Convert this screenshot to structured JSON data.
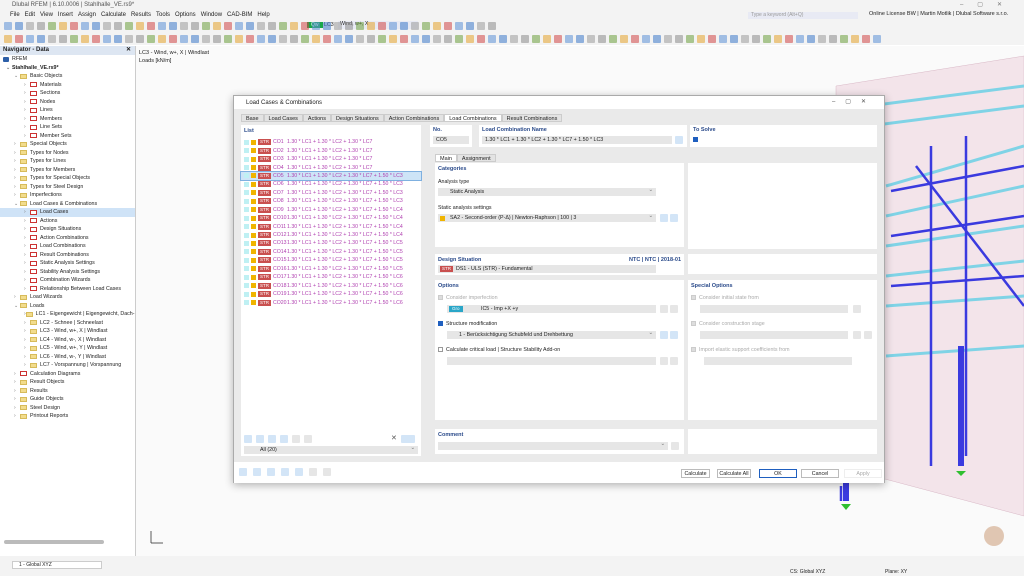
{
  "app": {
    "title": "Dlubal RFEM | 6.10.0006 | Stahlhalle_VE.rs9*",
    "menu": [
      "File",
      "Edit",
      "View",
      "Insert",
      "Assign",
      "Calculate",
      "Results",
      "Tools",
      "Options",
      "Window",
      "CAD-BIM",
      "Help"
    ],
    "search_placeholder": "Type a keyword (Alt+Q)",
    "license": "Online License BW | Martin Motlik | Dlubal Software s.r.o.",
    "load_case_badge": "Qw",
    "load_case_id": "LC3",
    "load_case_name": "Wind, w+, X"
  },
  "navigator": {
    "title": "Navigator - Data",
    "root": "RFEM",
    "file": "Stahlhalle_VE.rs9*",
    "items": [
      {
        "label": "Basic Objects",
        "level": 1,
        "folder": true,
        "open": true
      },
      {
        "label": "Materials",
        "level": 2
      },
      {
        "label": "Sections",
        "level": 2
      },
      {
        "label": "Nodes",
        "level": 2
      },
      {
        "label": "Lines",
        "level": 2
      },
      {
        "label": "Members",
        "level": 2
      },
      {
        "label": "Line Sets",
        "level": 2
      },
      {
        "label": "Member Sets",
        "level": 2
      },
      {
        "label": "Special Objects",
        "level": 1,
        "folder": true
      },
      {
        "label": "Types for Nodes",
        "level": 1,
        "folder": true
      },
      {
        "label": "Types for Lines",
        "level": 1,
        "folder": true
      },
      {
        "label": "Types for Members",
        "level": 1,
        "folder": true
      },
      {
        "label": "Types for Special Objects",
        "level": 1,
        "folder": true
      },
      {
        "label": "Types for Steel Design",
        "level": 1,
        "folder": true
      },
      {
        "label": "Imperfections",
        "level": 1,
        "folder": true
      },
      {
        "label": "Load Cases & Combinations",
        "level": 1,
        "folder": true,
        "open": true
      },
      {
        "label": "Load Cases",
        "level": 2,
        "selected": true
      },
      {
        "label": "Actions",
        "level": 2
      },
      {
        "label": "Design Situations",
        "level": 2
      },
      {
        "label": "Action Combinations",
        "level": 2
      },
      {
        "label": "Load Combinations",
        "level": 2
      },
      {
        "label": "Result Combinations",
        "level": 2
      },
      {
        "label": "Static Analysis Settings",
        "level": 2
      },
      {
        "label": "Stability Analysis Settings",
        "level": 2
      },
      {
        "label": "Combination Wizards",
        "level": 2
      },
      {
        "label": "Relationship Between Load Cases",
        "level": 2
      },
      {
        "label": "Load Wizards",
        "level": 1,
        "folder": true
      },
      {
        "label": "Loads",
        "level": 1,
        "folder": true,
        "open": true
      },
      {
        "label": "LC1 - Eigengewicht | Eigengewicht, Dach- u",
        "level": 2,
        "folder": true
      },
      {
        "label": "LC2 - Schnee | Schneelast",
        "level": 2,
        "folder": true
      },
      {
        "label": "LC3 - Wind, w+, X | Windlast",
        "level": 2,
        "folder": true
      },
      {
        "label": "LC4 - Wind, w-, X | Windlast",
        "level": 2,
        "folder": true
      },
      {
        "label": "LC5 - Wind, w+, Y | Windlast",
        "level": 2,
        "folder": true
      },
      {
        "label": "LC6 - Wind, w-, Y | Windlast",
        "level": 2,
        "folder": true
      },
      {
        "label": "LC7 - Vorspannung | Vorspannung",
        "level": 2,
        "folder": true
      },
      {
        "label": "Calculation Diagrams",
        "level": 1
      },
      {
        "label": "Result Objects",
        "level": 1,
        "folder": true
      },
      {
        "label": "Results",
        "level": 1,
        "folder": true
      },
      {
        "label": "Guide Objects",
        "level": 1,
        "folder": true
      },
      {
        "label": "Steel Design",
        "level": 1,
        "folder": true
      },
      {
        "label": "Printout Reports",
        "level": 1,
        "folder": true
      }
    ]
  },
  "viewport": {
    "title": "LC3 - Wind, w+, X | Windlast",
    "subtitle": "Loads [kN/m]",
    "cs": "CS: Global XYZ",
    "plane": "Plane: XY",
    "coord_select": "1 - Global XYZ"
  },
  "dialog": {
    "title": "Load Cases & Combinations",
    "tabs": [
      "Base",
      "Load Cases",
      "Actions",
      "Design Situations",
      "Action Combinations",
      "Load Combinations",
      "Result Combinations"
    ],
    "active_tab": "Load Combinations",
    "list_title": "List",
    "list": [
      {
        "id": "CO1",
        "name": "1.30 * LC1 + 1.30 * LC2 + 1.30 * LC7"
      },
      {
        "id": "CO2",
        "name": "1.30 * LC1 + 1.30 * LC2 + 1.30 * LC7"
      },
      {
        "id": "CO3",
        "name": "1.30 * LC1 + 1.30 * LC2 + 1.30 * LC7"
      },
      {
        "id": "CO4",
        "name": "1.30 * LC1 + 1.30 * LC2 + 1.30 * LC7"
      },
      {
        "id": "CO5",
        "name": "1.30 * LC1 + 1.30 * LC2 + 1.30 * LC7 + 1.50 * LC3",
        "selected": true
      },
      {
        "id": "CO6",
        "name": "1.30 * LC1 + 1.30 * LC2 + 1.30 * LC7 + 1.50 * LC3"
      },
      {
        "id": "CO7",
        "name": "1.30 * LC1 + 1.30 * LC2 + 1.30 * LC7 + 1.50 * LC3"
      },
      {
        "id": "CO8",
        "name": "1.30 * LC1 + 1.30 * LC2 + 1.30 * LC7 + 1.50 * LC3"
      },
      {
        "id": "CO9",
        "name": "1.30 * LC1 + 1.30 * LC2 + 1.30 * LC7 + 1.50 * LC4"
      },
      {
        "id": "CO10",
        "name": "1.30 * LC1 + 1.30 * LC2 + 1.30 * LC7 + 1.50 * LC4"
      },
      {
        "id": "CO11",
        "name": "1.30 * LC1 + 1.30 * LC2 + 1.30 * LC7 + 1.50 * LC4"
      },
      {
        "id": "CO12",
        "name": "1.30 * LC1 + 1.30 * LC2 + 1.30 * LC7 + 1.50 * LC4"
      },
      {
        "id": "CO13",
        "name": "1.30 * LC1 + 1.30 * LC2 + 1.30 * LC7 + 1.50 * LC5"
      },
      {
        "id": "CO14",
        "name": "1.30 * LC1 + 1.30 * LC2 + 1.30 * LC7 + 1.50 * LC5"
      },
      {
        "id": "CO15",
        "name": "1.30 * LC1 + 1.30 * LC2 + 1.30 * LC7 + 1.50 * LC5"
      },
      {
        "id": "CO16",
        "name": "1.30 * LC1 + 1.30 * LC2 + 1.30 * LC7 + 1.50 * LC5"
      },
      {
        "id": "CO17",
        "name": "1.30 * LC1 + 1.30 * LC2 + 1.30 * LC7 + 1.50 * LC6"
      },
      {
        "id": "CO18",
        "name": "1.30 * LC1 + 1.30 * LC2 + 1.30 * LC7 + 1.50 * LC6"
      },
      {
        "id": "CO19",
        "name": "1.30 * LC1 + 1.30 * LC2 + 1.30 * LC7 + 1.50 * LC6"
      },
      {
        "id": "CO20",
        "name": "1.30 * LC1 + 1.30 * LC2 + 1.30 * LC7 + 1.50 * LC6"
      }
    ],
    "badge": "STR",
    "filter": "All (20)",
    "no_label": "No.",
    "no_value": "CO5",
    "name_label": "Load Combination Name",
    "name_value": "1.30 * LC1 + 1.30 * LC2 + 1.30 * LC7 + 1.50 * LC3",
    "to_solve_label": "To Solve",
    "to_solve": true,
    "subtabs": [
      "Main",
      "Assignment"
    ],
    "categories": "Categories",
    "analysis_type_label": "Analysis type",
    "analysis_type": "Static Analysis",
    "static_settings_label": "Static analysis settings",
    "static_settings": "SA2 - Second-order (P-Δ) | Newton-Raphson | 100 | 3",
    "design_situation_label": "Design Situation",
    "design_situation_std": "NTC | NTC | 2018-01",
    "design_situation": "DS1 - ULS (STR) - Fundamental",
    "options_label": "Options",
    "imperfection_label": "Consider imperfection",
    "imperfection_badge": "Gro",
    "imperfection": "IC5 - Imp +X +y",
    "structure_mod_label": "Structure modification",
    "structure_mod": "1 - Berücksichtigung Schubfeld und Drehbettung",
    "critical_load_label": "Calculate critical load | Structure Stability Add-on",
    "special_options_label": "Special Options",
    "initial_state_label": "Consider initial state from",
    "construction_stage_label": "Consider construction stage",
    "elastic_support_label": "Import elastic support coefficients from",
    "comment_label": "Comment",
    "buttons": {
      "calculate": "Calculate",
      "calculate_all": "Calculate All",
      "ok": "OK",
      "cancel": "Cancel",
      "apply": "Apply"
    }
  },
  "colors": {
    "accent": "#1f5fbf",
    "str_badge": "#c9504f",
    "list_text": "#b040b0",
    "beam": "#3a3adf",
    "purlin": "#7fd3e6"
  }
}
